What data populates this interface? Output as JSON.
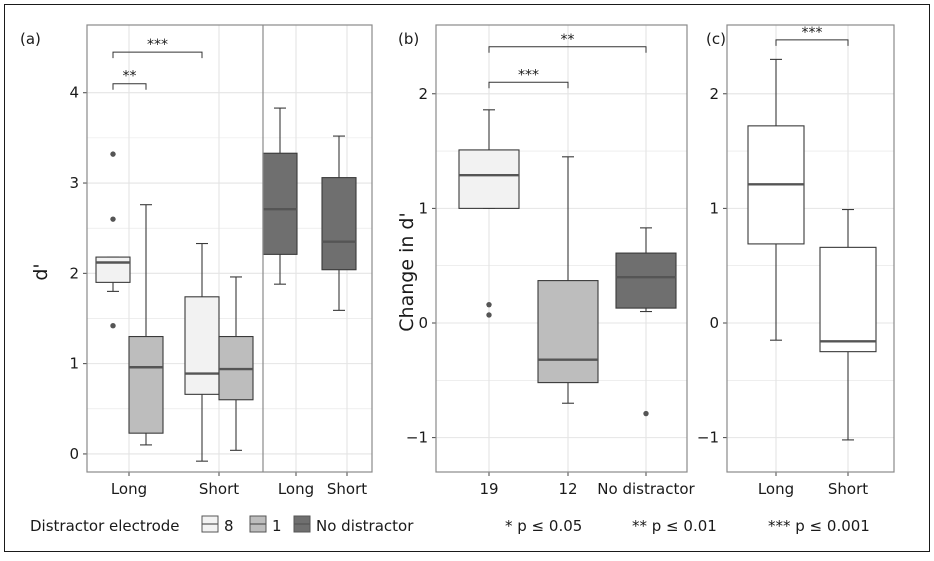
{
  "colors": {
    "electrode_8": "#f2f2f2",
    "electrode_1": "#bdbdbd",
    "no_distractor": "#6f6f6f",
    "white": "#ffffff",
    "median": "#555555",
    "outline": "#3a3a3a",
    "grid": "#e4e4e4",
    "frame": "#8a8a8a",
    "outlier": "#555555"
  },
  "legend": {
    "title": "Distractor electrode",
    "items": [
      {
        "label": "8",
        "color_key": "electrode_8"
      },
      {
        "label": "1",
        "color_key": "electrode_1"
      },
      {
        "label": "No distractor",
        "color_key": "no_distractor"
      }
    ],
    "sig_notes": [
      "* p ≤ 0.05",
      "** p ≤ 0.01",
      "*** p ≤ 0.001"
    ]
  },
  "chart_data": [
    {
      "type": "box",
      "panel_label": "(a)",
      "ylabel": "d'",
      "ylim": [
        -0.2,
        4.75
      ],
      "yticks": [
        0,
        1,
        2,
        3,
        4
      ],
      "categories": [
        "Long",
        "Short",
        "Long",
        "Short"
      ],
      "boxes": [
        {
          "category": "Long",
          "group": "8",
          "color_key": "electrode_8",
          "min": 1.8,
          "q1": 1.9,
          "median": 2.12,
          "q3": 2.18,
          "max": 2.18,
          "outliers": [
            3.32,
            2.6,
            1.42
          ]
        },
        {
          "category": "Long",
          "group": "1",
          "color_key": "electrode_1",
          "min": 0.1,
          "q1": 0.23,
          "median": 0.96,
          "q3": 1.3,
          "max": 2.76,
          "outliers": []
        },
        {
          "category": "Short",
          "group": "8",
          "color_key": "electrode_8",
          "min": -0.08,
          "q1": 0.66,
          "median": 0.89,
          "q3": 1.74,
          "max": 2.33,
          "outliers": []
        },
        {
          "category": "Short",
          "group": "1",
          "color_key": "electrode_1",
          "min": 0.04,
          "q1": 0.6,
          "median": 0.94,
          "q3": 1.3,
          "max": 1.96,
          "outliers": []
        },
        {
          "category": "Long",
          "group": "No distractor",
          "color_key": "no_distractor",
          "min": 1.88,
          "q1": 2.21,
          "median": 2.71,
          "q3": 3.33,
          "max": 3.83,
          "outliers": []
        },
        {
          "category": "Short",
          "group": "No distractor",
          "color_key": "no_distractor",
          "min": 1.59,
          "q1": 2.04,
          "median": 2.35,
          "q3": 3.06,
          "max": 3.52,
          "outliers": []
        }
      ],
      "significance": [
        {
          "from_box": 0,
          "to_box": 1,
          "y": 4.1,
          "label": "**"
        },
        {
          "from_box": 0,
          "to_box": 2,
          "y": 4.45,
          "label": "***"
        }
      ]
    },
    {
      "type": "box",
      "panel_label": "(b)",
      "ylabel": "Change in d'",
      "ylim": [
        -1.3,
        2.6
      ],
      "yticks": [
        -1,
        0,
        1,
        2
      ],
      "categories": [
        "19",
        "12",
        "No distractor"
      ],
      "boxes": [
        {
          "category": "19",
          "color_key": "electrode_8",
          "min": 1.0,
          "q1": 1.0,
          "median": 1.29,
          "q3": 1.51,
          "max": 1.86,
          "outliers": [
            0.16,
            0.07
          ]
        },
        {
          "category": "12",
          "color_key": "electrode_1",
          "min": -0.7,
          "q1": -0.52,
          "median": -0.32,
          "q3": 0.37,
          "max": 1.45,
          "outliers": []
        },
        {
          "category": "No distractor",
          "color_key": "no_distractor",
          "min": 0.1,
          "q1": 0.13,
          "median": 0.4,
          "q3": 0.61,
          "max": 0.83,
          "outliers": [
            -0.79
          ]
        }
      ],
      "significance": [
        {
          "from_box": 0,
          "to_box": 1,
          "y": 2.1,
          "label": "***"
        },
        {
          "from_box": 0,
          "to_box": 2,
          "y": 2.41,
          "label": "**"
        }
      ]
    },
    {
      "type": "box",
      "panel_label": "(c)",
      "ylabel": "",
      "ylim": [
        -1.3,
        2.6
      ],
      "yticks": [
        -1,
        0,
        1,
        2
      ],
      "categories": [
        "Long",
        "Short"
      ],
      "boxes": [
        {
          "category": "Long",
          "color_key": "white",
          "min": -0.15,
          "q1": 0.69,
          "median": 1.21,
          "q3": 1.72,
          "max": 2.3,
          "outliers": []
        },
        {
          "category": "Short",
          "color_key": "white",
          "min": -1.02,
          "q1": -0.25,
          "median": -0.16,
          "q3": 0.66,
          "max": 0.99,
          "outliers": []
        }
      ],
      "significance": [
        {
          "from_box": 0,
          "to_box": 1,
          "y": 2.47,
          "label": "***"
        }
      ]
    }
  ]
}
